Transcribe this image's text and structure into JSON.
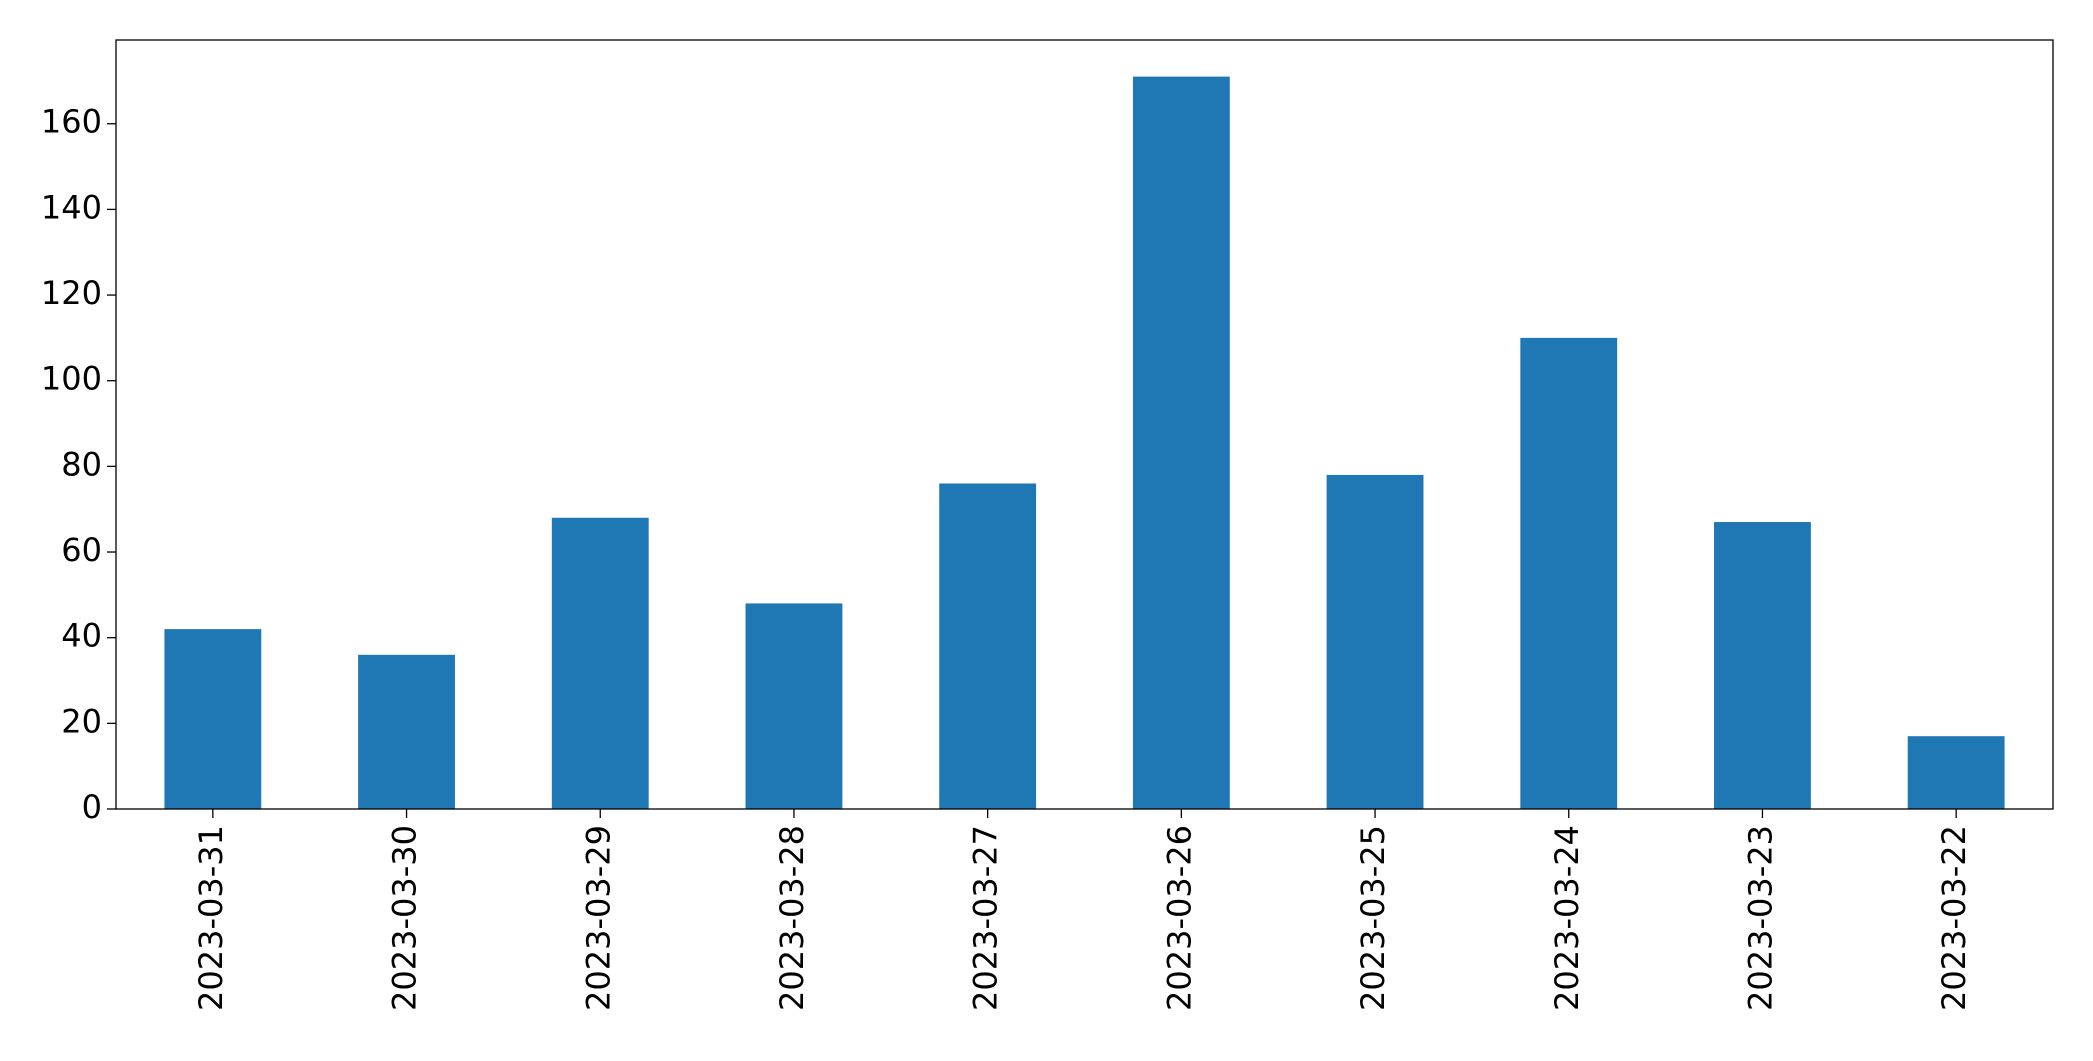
{
  "chart_data": {
    "type": "bar",
    "categories": [
      "2023-03-31",
      "2023-03-30",
      "2023-03-29",
      "2023-03-28",
      "2023-03-27",
      "2023-03-26",
      "2023-03-25",
      "2023-03-24",
      "2023-03-23",
      "2023-03-22"
    ],
    "values": [
      42,
      36,
      68,
      48,
      76,
      171,
      78,
      110,
      67,
      17
    ],
    "color": "#1f77b4",
    "ylim": [
      0,
      179.55
    ],
    "yticks": [
      0,
      20,
      40,
      60,
      80,
      100,
      120,
      140,
      160
    ],
    "grid": false
  }
}
